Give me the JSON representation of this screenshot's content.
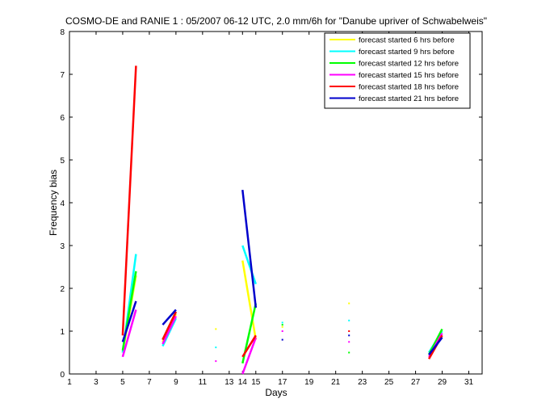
{
  "chart_data": {
    "type": "line",
    "title": "COSMO-DE and RANIE 1 : 05/2007 06-12 UTC, 2.0 mm/6h for \"Danube upriver of Schwabelweis\"",
    "xlabel": "Days",
    "ylabel": "Frequency bias",
    "xlim": [
      1,
      32
    ],
    "ylim": [
      0,
      8
    ],
    "xticks": [
      1,
      3,
      5,
      7,
      9,
      11,
      13,
      14,
      15,
      17,
      19,
      21,
      23,
      25,
      27,
      29,
      31
    ],
    "yticks": [
      0,
      1,
      2,
      3,
      4,
      5,
      6,
      7,
      8
    ],
    "grid": false,
    "legend_position": "top-right",
    "series": [
      {
        "name": "forecast started 6 hrs before",
        "color": "#ffff00",
        "segments": [
          [
            [
              5,
              0.5
            ],
            [
              6,
              2.3
            ]
          ],
          [
            [
              8,
              0.75
            ],
            [
              9,
              1.4
            ]
          ],
          [
            [
              12,
              1.05
            ]
          ],
          [
            [
              14,
              2.65
            ],
            [
              15,
              0.8
            ]
          ],
          [
            [
              17,
              1.1
            ]
          ],
          [
            [
              22,
              1.65
            ]
          ],
          [
            [
              28,
              0.45
            ],
            [
              29,
              0.9
            ]
          ]
        ]
      },
      {
        "name": "forecast started 9 hrs before",
        "color": "#00ffff",
        "segments": [
          [
            [
              5,
              0.5
            ],
            [
              6,
              2.8
            ]
          ],
          [
            [
              8,
              0.65
            ],
            [
              9,
              1.3
            ]
          ],
          [
            [
              12,
              0.62
            ]
          ],
          [
            [
              14,
              3.0
            ],
            [
              15,
              2.1
            ]
          ],
          [
            [
              17,
              1.2
            ]
          ],
          [
            [
              22,
              1.25
            ]
          ],
          [
            [
              28,
              0.5
            ],
            [
              29,
              1.0
            ]
          ]
        ]
      },
      {
        "name": "forecast started 12 hrs before",
        "color": "#00ff00",
        "segments": [
          [
            [
              5,
              0.55
            ],
            [
              6,
              2.4
            ]
          ],
          [
            [
              8,
              0.8
            ],
            [
              9,
              1.45
            ]
          ],
          [
            [
              14,
              0.25
            ],
            [
              15,
              1.65
            ]
          ],
          [
            [
              17,
              1.15
            ]
          ],
          [
            [
              22,
              0.5
            ]
          ],
          [
            [
              28,
              0.45
            ],
            [
              29,
              1.05
            ]
          ]
        ]
      },
      {
        "name": "forecast started 15 hrs before",
        "color": "#ff00ff",
        "segments": [
          [
            [
              5,
              0.4
            ],
            [
              6,
              1.5
            ]
          ],
          [
            [
              8,
              0.7
            ],
            [
              9,
              1.35
            ]
          ],
          [
            [
              12,
              0.3
            ]
          ],
          [
            [
              14,
              0.0
            ],
            [
              15,
              0.85
            ]
          ],
          [
            [
              17,
              1.0
            ]
          ],
          [
            [
              22,
              0.75
            ]
          ],
          [
            [
              28,
              0.4
            ],
            [
              29,
              0.95
            ]
          ]
        ]
      },
      {
        "name": "forecast started 18 hrs before",
        "color": "#ff0000",
        "segments": [
          [
            [
              5,
              0.9
            ],
            [
              6,
              7.2
            ]
          ],
          [
            [
              8,
              0.8
            ],
            [
              9,
              1.45
            ]
          ],
          [
            [
              14,
              0.4
            ],
            [
              15,
              0.9
            ]
          ],
          [
            [
              22,
              1.0
            ]
          ],
          [
            [
              28,
              0.35
            ],
            [
              29,
              0.9
            ]
          ]
        ]
      },
      {
        "name": "forecast started 21 hrs before",
        "color": "#0000cc",
        "segments": [
          [
            [
              5,
              0.75
            ],
            [
              6,
              1.7
            ]
          ],
          [
            [
              8,
              1.15
            ],
            [
              9,
              1.5
            ]
          ],
          [
            [
              14,
              4.3
            ],
            [
              15,
              1.55
            ]
          ],
          [
            [
              17,
              0.8
            ]
          ],
          [
            [
              22,
              0.9
            ]
          ],
          [
            [
              28,
              0.45
            ],
            [
              29,
              0.85
            ]
          ]
        ]
      }
    ]
  }
}
